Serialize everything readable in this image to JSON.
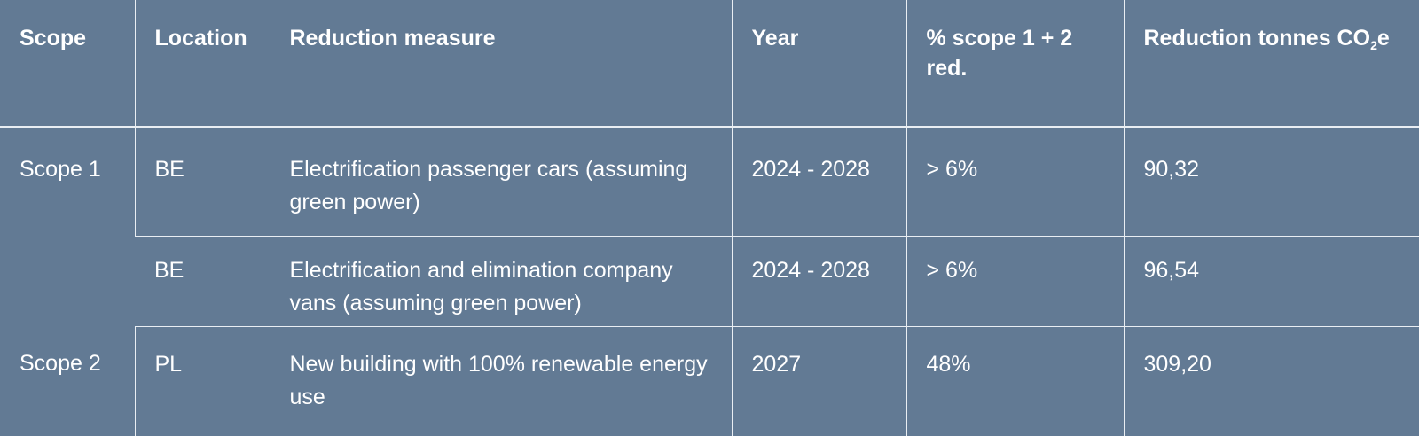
{
  "table": {
    "headers": {
      "scope": "Scope",
      "location": "Location",
      "measure": "Reduction measure",
      "year": "Year",
      "pct": "% scope 1 + 2 red.",
      "reduction_pre": "Reduction tonnes CO",
      "reduction_sub": "2",
      "reduction_post": "e"
    },
    "rows": [
      {
        "scope": "Scope 1",
        "location": "BE",
        "measure": "Electrification passenger cars (assuming green power)",
        "year": "2024  - 2028",
        "pct": "> 6%",
        "reduction": "90,32"
      },
      {
        "scope": "",
        "location": "BE",
        "measure": "Electrification and elimination company vans (assuming green power)",
        "year": "2024 - 2028",
        "pct": "> 6%",
        "reduction": "96,54"
      },
      {
        "scope": "Scope 2",
        "location": "PL",
        "measure": "New building with 100% renewable energy use",
        "year": "2027",
        "pct": "48%",
        "reduction": "309,20"
      }
    ]
  }
}
